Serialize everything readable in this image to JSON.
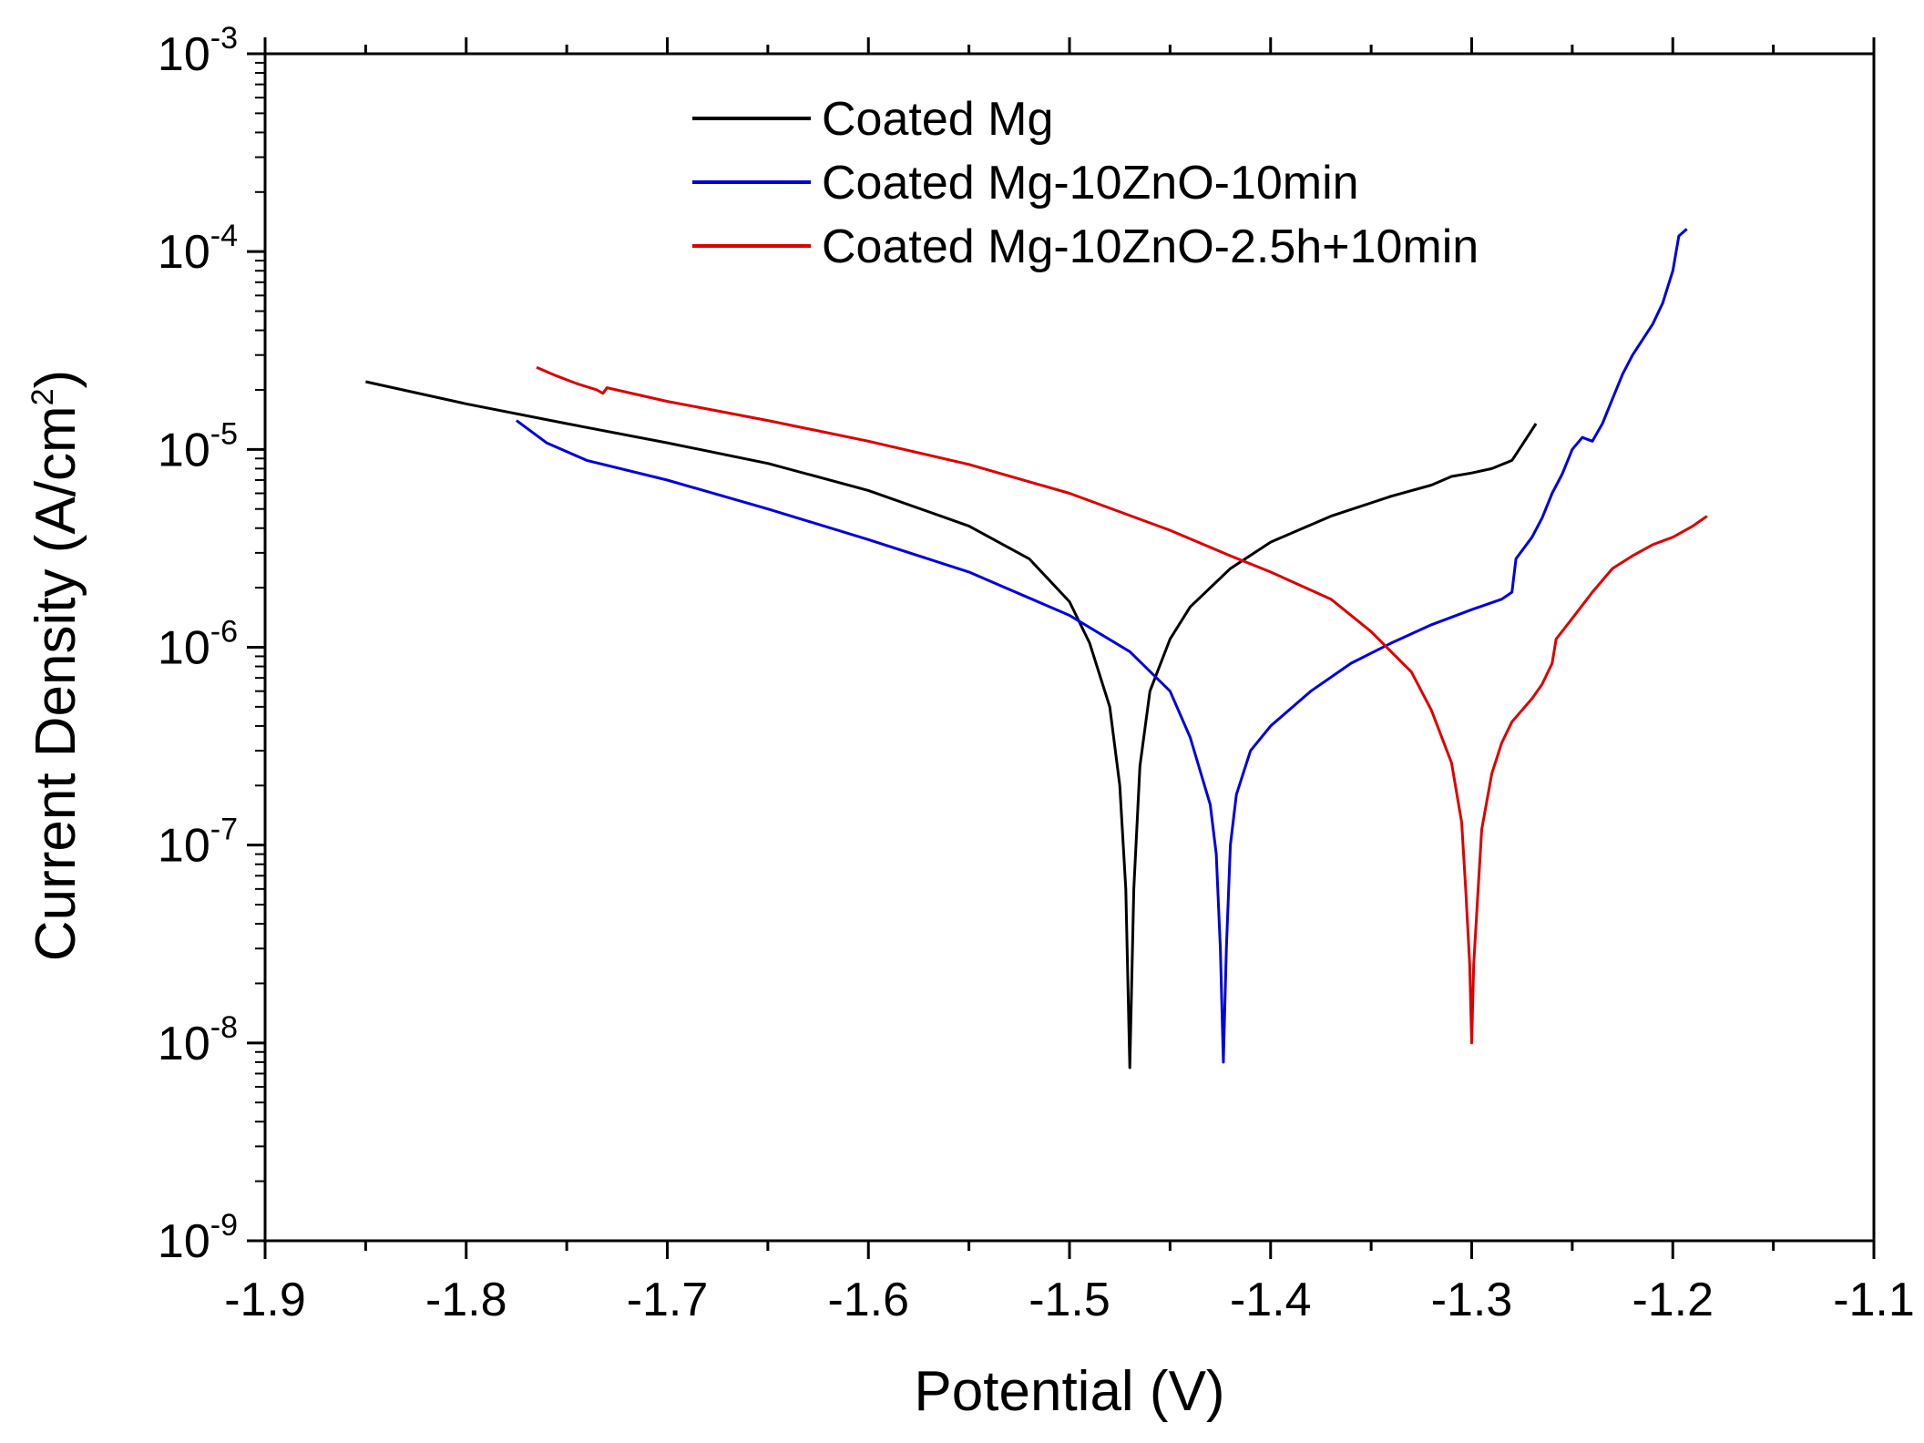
{
  "chart_data": {
    "type": "line",
    "title": "",
    "xlabel": "Potential (V)",
    "ylabel": "Current Density (A/cm2)",
    "ylabel_parts": {
      "main": "Current Density (A/cm",
      "sup": "2",
      "close": ")"
    },
    "xlim": [
      -1.9,
      -1.1
    ],
    "ylim": [
      1e-09,
      0.001
    ],
    "yscale": "log",
    "x_ticks": [
      -1.9,
      -1.8,
      -1.7,
      -1.6,
      -1.5,
      -1.4,
      -1.3,
      -1.2,
      -1.1
    ],
    "x_tick_labels": [
      "-1.9",
      "-1.8",
      "-1.7",
      "-1.6",
      "-1.5",
      "-1.4",
      "-1.3",
      "-1.2",
      "-1.1"
    ],
    "y_ticks": [
      {
        "base": "10",
        "exp": "-9",
        "value": 1e-09
      },
      {
        "base": "10",
        "exp": "-8",
        "value": 1e-08
      },
      {
        "base": "10",
        "exp": "-7",
        "value": 1e-07
      },
      {
        "base": "10",
        "exp": "-6",
        "value": 1e-06
      },
      {
        "base": "10",
        "exp": "-5",
        "value": 1e-05
      },
      {
        "base": "10",
        "exp": "-4",
        "value": 0.0001
      },
      {
        "base": "10",
        "exp": "-3",
        "value": 0.001
      }
    ],
    "legend_position": "top-center",
    "grid": false,
    "series": [
      {
        "name": "Coated Mg",
        "color": "#000000",
        "points": [
          [
            -1.85,
            2.2e-05
          ],
          [
            -1.8,
            1.7e-05
          ],
          [
            -1.75,
            1.35e-05
          ],
          [
            -1.7,
            1.08e-05
          ],
          [
            -1.65,
            8.5e-06
          ],
          [
            -1.6,
            6.2e-06
          ],
          [
            -1.55,
            4.1e-06
          ],
          [
            -1.52,
            2.8e-06
          ],
          [
            -1.5,
            1.7e-06
          ],
          [
            -1.49,
            1.05e-06
          ],
          [
            -1.48,
            5e-07
          ],
          [
            -1.475,
            2e-07
          ],
          [
            -1.472,
            6e-08
          ],
          [
            -1.47,
            7.5e-09
          ],
          [
            -1.468,
            6e-08
          ],
          [
            -1.465,
            2.5e-07
          ],
          [
            -1.46,
            6e-07
          ],
          [
            -1.45,
            1.1e-06
          ],
          [
            -1.44,
            1.6e-06
          ],
          [
            -1.42,
            2.5e-06
          ],
          [
            -1.4,
            3.4e-06
          ],
          [
            -1.37,
            4.6e-06
          ],
          [
            -1.34,
            5.8e-06
          ],
          [
            -1.32,
            6.6e-06
          ],
          [
            -1.31,
            7.3e-06
          ],
          [
            -1.3,
            7.6e-06
          ],
          [
            -1.29,
            8e-06
          ],
          [
            -1.28,
            8.8e-06
          ],
          [
            -1.275,
            1.05e-05
          ],
          [
            -1.268,
            1.35e-05
          ]
        ]
      },
      {
        "name": "Coated Mg-10ZnO-10min",
        "color": "#0000dd",
        "points": [
          [
            -1.775,
            1.4e-05
          ],
          [
            -1.76,
            1.08e-05
          ],
          [
            -1.74,
            8.8e-06
          ],
          [
            -1.7,
            7e-06
          ],
          [
            -1.65,
            5e-06
          ],
          [
            -1.6,
            3.5e-06
          ],
          [
            -1.55,
            2.4e-06
          ],
          [
            -1.5,
            1.45e-06
          ],
          [
            -1.47,
            9.5e-07
          ],
          [
            -1.45,
            6e-07
          ],
          [
            -1.44,
            3.5e-07
          ],
          [
            -1.43,
            1.6e-07
          ],
          [
            -1.427,
            9e-08
          ],
          [
            -1.425,
            3e-08
          ],
          [
            -1.4235,
            8e-09
          ],
          [
            -1.422,
            3e-08
          ],
          [
            -1.42,
            1e-07
          ],
          [
            -1.417,
            1.8e-07
          ],
          [
            -1.41,
            3e-07
          ],
          [
            -1.4,
            4e-07
          ],
          [
            -1.38,
            6e-07
          ],
          [
            -1.36,
            8.3e-07
          ],
          [
            -1.34,
            1.05e-06
          ],
          [
            -1.32,
            1.3e-06
          ],
          [
            -1.3,
            1.55e-06
          ],
          [
            -1.285,
            1.75e-06
          ],
          [
            -1.28,
            1.9e-06
          ],
          [
            -1.278,
            2.8e-06
          ],
          [
            -1.27,
            3.6e-06
          ],
          [
            -1.265,
            4.5e-06
          ],
          [
            -1.26,
            6e-06
          ],
          [
            -1.255,
            7.5e-06
          ],
          [
            -1.25,
            1e-05
          ],
          [
            -1.245,
            1.15e-05
          ],
          [
            -1.24,
            1.1e-05
          ],
          [
            -1.235,
            1.35e-05
          ],
          [
            -1.23,
            1.8e-05
          ],
          [
            -1.225,
            2.4e-05
          ],
          [
            -1.22,
            3e-05
          ],
          [
            -1.21,
            4.3e-05
          ],
          [
            -1.205,
            5.5e-05
          ],
          [
            -1.2,
            8e-05
          ],
          [
            -1.197,
            0.00012
          ],
          [
            -1.193,
            0.00013
          ]
        ]
      },
      {
        "name": "Coated Mg-10ZnO-2.5h+10min",
        "color": "#dd0000",
        "points": [
          [
            -1.765,
            2.6e-05
          ],
          [
            -1.755,
            2.35e-05
          ],
          [
            -1.745,
            2.15e-05
          ],
          [
            -1.735,
            2e-05
          ],
          [
            -1.732,
            1.92e-05
          ],
          [
            -1.73,
            2.05e-05
          ],
          [
            -1.7,
            1.75e-05
          ],
          [
            -1.65,
            1.4e-05
          ],
          [
            -1.6,
            1.1e-05
          ],
          [
            -1.55,
            8.4e-06
          ],
          [
            -1.5,
            6e-06
          ],
          [
            -1.45,
            3.9e-06
          ],
          [
            -1.42,
            2.9e-06
          ],
          [
            -1.4,
            2.4e-06
          ],
          [
            -1.37,
            1.75e-06
          ],
          [
            -1.35,
            1.2e-06
          ],
          [
            -1.33,
            7.5e-07
          ],
          [
            -1.32,
            4.8e-07
          ],
          [
            -1.31,
            2.6e-07
          ],
          [
            -1.305,
            1.3e-07
          ],
          [
            -1.303,
            6e-08
          ],
          [
            -1.301,
            2.5e-08
          ],
          [
            -1.3,
            1e-08
          ],
          [
            -1.299,
            2.5e-08
          ],
          [
            -1.297,
            5.5e-08
          ],
          [
            -1.295,
            1.2e-07
          ],
          [
            -1.29,
            2.3e-07
          ],
          [
            -1.285,
            3.3e-07
          ],
          [
            -1.28,
            4.2e-07
          ],
          [
            -1.27,
            5.5e-07
          ],
          [
            -1.265,
            6.5e-07
          ],
          [
            -1.26,
            8.3e-07
          ],
          [
            -1.258,
            1.1e-06
          ],
          [
            -1.25,
            1.4e-06
          ],
          [
            -1.24,
            1.9e-06
          ],
          [
            -1.23,
            2.5e-06
          ],
          [
            -1.22,
            2.9e-06
          ],
          [
            -1.21,
            3.3e-06
          ],
          [
            -1.2,
            3.6e-06
          ],
          [
            -1.19,
            4.1e-06
          ],
          [
            -1.183,
            4.6e-06
          ]
        ]
      }
    ]
  }
}
